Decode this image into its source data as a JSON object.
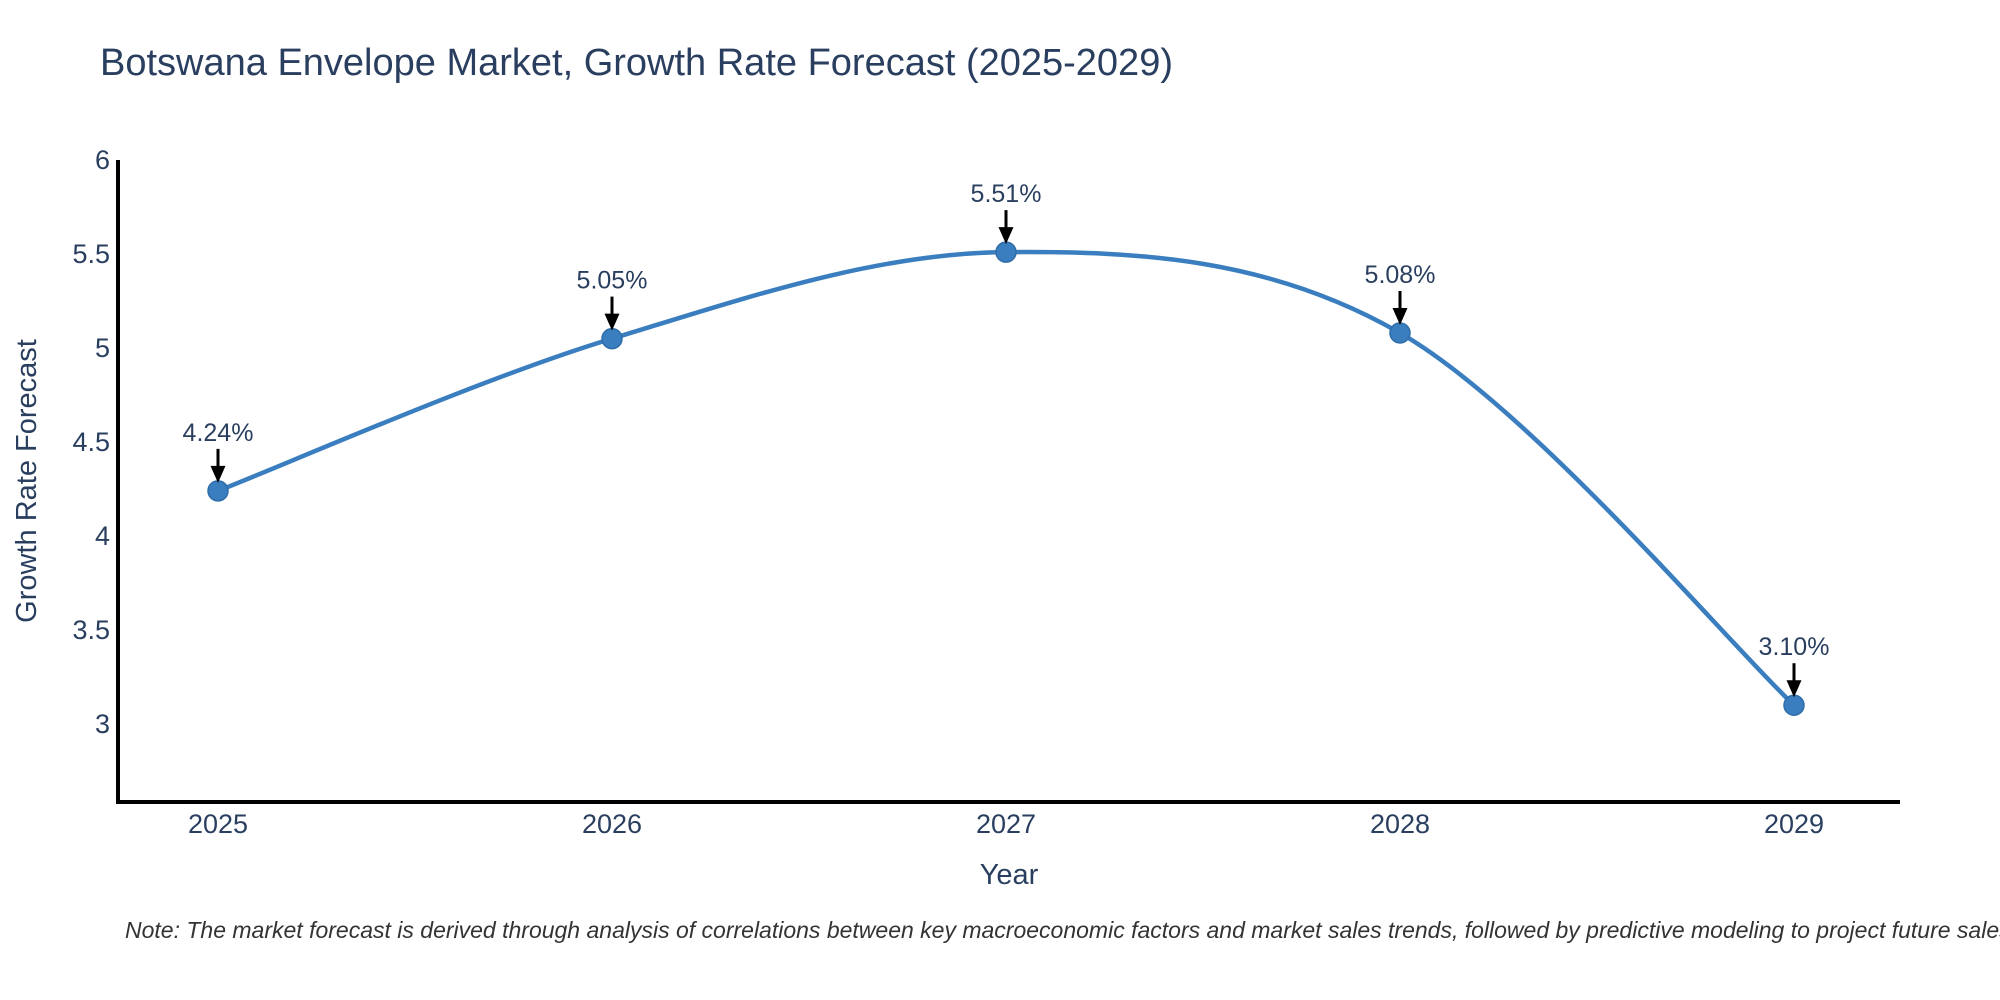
{
  "title": "Botswana Envelope Market, Growth Rate Forecast (2025-2029)",
  "note": "Note: The market forecast is derived through analysis of correlations between key macroeconomic factors and market sales trends, followed by predictive modeling to project future sales",
  "chart_data": {
    "type": "line",
    "title": "Botswana Envelope Market, Growth Rate Forecast (2025-2029)",
    "xlabel": "Year",
    "ylabel": "Growth Rate Forecast",
    "categories": [
      "2025",
      "2026",
      "2027",
      "2028",
      "2029"
    ],
    "series": [
      {
        "name": "Growth Rate Forecast",
        "values": [
          4.24,
          5.05,
          5.51,
          5.08,
          3.1
        ],
        "point_labels": [
          "4.24%",
          "5.05%",
          "5.51%",
          "5.08%",
          "3.10%"
        ]
      }
    ],
    "line_shape": "spline",
    "markers": true,
    "grid": false,
    "legend_position": "none",
    "yticks": [
      "6",
      "5.5",
      "5",
      "4.5",
      "4",
      "3.5",
      "3"
    ],
    "ytick_values": [
      6,
      5.5,
      5,
      4.5,
      4,
      3.5,
      3
    ],
    "ylim": [
      2.58,
      6.0
    ],
    "annotations_arrow": "down",
    "colors": {
      "line": "#3a7ebf",
      "marker": "#3a7ebf",
      "marker_edge": "#2f6da8",
      "axis_line": "#000000",
      "tick_text": "#2a3f5f",
      "axis_title_text": "#2a3f5f",
      "annotation_text": "#2a3f5f",
      "arrow": "#000000",
      "title_text": "#2a3f5f",
      "note_text": "#333333",
      "background": "#ffffff"
    }
  }
}
